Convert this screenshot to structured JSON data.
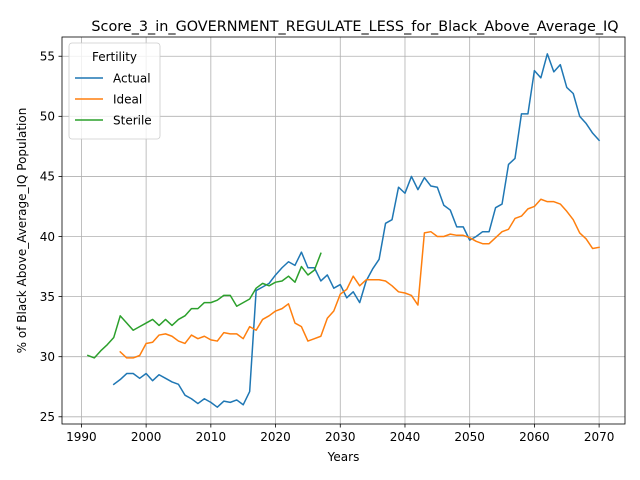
{
  "chart_data": {
    "type": "line",
    "title": "Score_3_in_GOVERNMENT_REGULATE_LESS_for_Black_Above_Average_IQ",
    "xlabel": "Years",
    "ylabel": "% of Black Above_Average_IQ Population",
    "xlim": [
      1987,
      2074
    ],
    "ylim": [
      24.4,
      56.6
    ],
    "x_ticks": [
      1990,
      2000,
      2010,
      2020,
      2030,
      2040,
      2050,
      2060,
      2070
    ],
    "y_ticks": [
      25,
      30,
      35,
      40,
      45,
      50,
      55
    ],
    "grid": true,
    "legend": {
      "title": "Fertility",
      "placement": "top-left"
    },
    "series": [
      {
        "name": "Actual",
        "color": "#1f77b4",
        "x": [
          1995,
          1996,
          1997,
          1998,
          1999,
          2000,
          2001,
          2002,
          2003,
          2004,
          2005,
          2006,
          2007,
          2008,
          2009,
          2010,
          2011,
          2012,
          2013,
          2014,
          2015,
          2016,
          2017,
          2018,
          2019,
          2020,
          2021,
          2022,
          2023,
          2024,
          2025,
          2026,
          2027,
          2028,
          2029,
          2030,
          2031,
          2032,
          2033,
          2034,
          2035,
          2036,
          2037,
          2038,
          2039,
          2040,
          2041,
          2042,
          2043,
          2044,
          2045,
          2046,
          2047,
          2048,
          2049,
          2050,
          2051,
          2052,
          2053,
          2054,
          2055,
          2056,
          2057,
          2058,
          2059,
          2060,
          2061,
          2062,
          2063,
          2064,
          2065,
          2066,
          2067,
          2068,
          2069,
          2070
        ],
        "values": [
          27.7,
          28.1,
          28.6,
          28.6,
          28.2,
          28.6,
          28.0,
          28.5,
          28.2,
          27.9,
          27.7,
          26.8,
          26.5,
          26.1,
          26.5,
          26.2,
          25.8,
          26.3,
          26.2,
          26.4,
          26.0,
          27.1,
          35.5,
          35.8,
          36.1,
          36.8,
          37.4,
          37.9,
          37.6,
          38.7,
          37.4,
          37.4,
          36.3,
          36.8,
          35.7,
          36.0,
          34.9,
          35.4,
          34.5,
          36.3,
          37.3,
          38.1,
          41.1,
          41.4,
          44.1,
          43.6,
          45.0,
          43.9,
          44.9,
          44.2,
          44.1,
          42.6,
          42.2,
          40.8,
          40.8,
          39.7,
          40.0,
          40.4,
          40.4,
          42.4,
          42.7,
          46.0,
          46.5,
          50.2,
          50.2,
          53.8,
          53.2,
          55.2,
          53.7,
          54.3,
          52.4,
          51.9,
          50.0,
          49.4,
          48.6,
          48.0
        ]
      },
      {
        "name": "Ideal",
        "color": "#ff7f0e",
        "x": [
          1996,
          1997,
          1998,
          1999,
          2000,
          2001,
          2002,
          2003,
          2004,
          2005,
          2006,
          2007,
          2008,
          2009,
          2010,
          2011,
          2012,
          2013,
          2014,
          2015,
          2016,
          2017,
          2018,
          2019,
          2020,
          2021,
          2022,
          2023,
          2024,
          2025,
          2026,
          2027,
          2028,
          2029,
          2030,
          2031,
          2032,
          2033,
          2034,
          2035,
          2036,
          2037,
          2038,
          2039,
          2040,
          2041,
          2042,
          2043,
          2044,
          2045,
          2046,
          2047,
          2048,
          2049,
          2050,
          2051,
          2052,
          2053,
          2054,
          2055,
          2056,
          2057,
          2058,
          2059,
          2060,
          2061,
          2062,
          2063,
          2064,
          2065,
          2066,
          2067,
          2068,
          2069,
          2070
        ],
        "values": [
          30.4,
          29.9,
          29.9,
          30.1,
          31.1,
          31.2,
          31.8,
          31.9,
          31.7,
          31.3,
          31.1,
          31.8,
          31.5,
          31.7,
          31.4,
          31.3,
          32.0,
          31.9,
          31.9,
          31.5,
          32.5,
          32.2,
          33.1,
          33.4,
          33.8,
          34.0,
          34.4,
          32.8,
          32.5,
          31.3,
          31.5,
          31.7,
          33.2,
          33.8,
          35.2,
          35.6,
          36.7,
          35.9,
          36.4,
          36.4,
          36.4,
          36.3,
          35.9,
          35.4,
          35.3,
          35.1,
          34.3,
          40.3,
          40.4,
          40.0,
          40.0,
          40.2,
          40.1,
          40.1,
          39.9,
          39.6,
          39.4,
          39.4,
          39.9,
          40.4,
          40.6,
          41.5,
          41.7,
          42.3,
          42.5,
          43.1,
          42.9,
          42.9,
          42.7,
          42.1,
          41.4,
          40.3,
          39.8,
          39.0,
          39.1
        ]
      },
      {
        "name": "Sterile",
        "color": "#2ca02c",
        "x": [
          1991,
          1992,
          1993,
          1994,
          1995,
          1996,
          1997,
          1998,
          1999,
          2000,
          2001,
          2002,
          2003,
          2004,
          2005,
          2006,
          2007,
          2008,
          2009,
          2010,
          2011,
          2012,
          2013,
          2014,
          2015,
          2016,
          2017,
          2018,
          2019,
          2020,
          2021,
          2022,
          2023,
          2024,
          2025,
          2026,
          2027
        ],
        "values": [
          30.1,
          29.9,
          30.5,
          31.0,
          31.6,
          33.4,
          32.8,
          32.2,
          32.5,
          32.8,
          33.1,
          32.6,
          33.1,
          32.6,
          33.1,
          33.4,
          34.0,
          34.0,
          34.5,
          34.5,
          34.7,
          35.1,
          35.1,
          34.2,
          34.5,
          34.8,
          35.7,
          36.1,
          35.9,
          36.2,
          36.3,
          36.7,
          36.2,
          37.5,
          36.8,
          37.2,
          38.6
        ]
      }
    ]
  }
}
